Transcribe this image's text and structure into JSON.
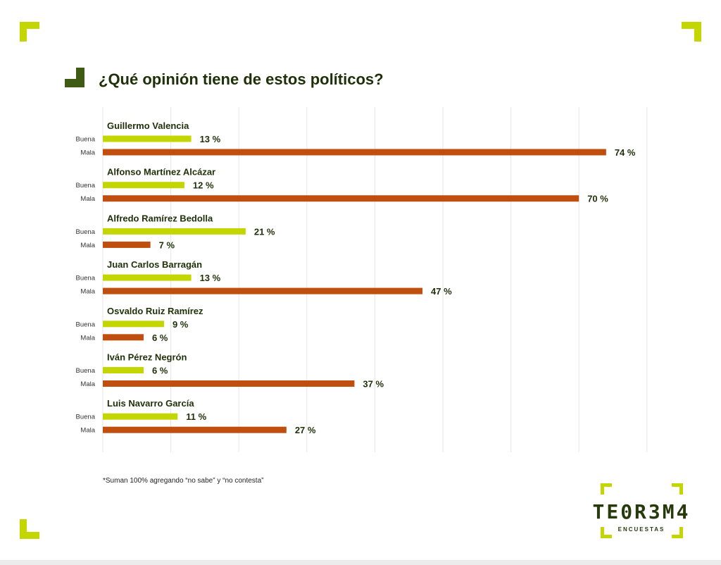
{
  "title": "¿Qué opinión tiene de estos políticos?",
  "footnote": "*Suman 100% agregando “no sabe” y “no contesta”",
  "brand": {
    "name": "TE0R3M4",
    "tagline": "ENCUESTAS"
  },
  "colors": {
    "accent": "#c4d600",
    "dark": "#3f5a12",
    "buena": "#c4d600",
    "mala": "#bf4e0f",
    "grid": "#e6e6e6",
    "label": "#1e3008"
  },
  "chart_data": {
    "type": "bar",
    "orientation": "horizontal",
    "title": "¿Qué opinión tiene de estos políticos?",
    "xlim": [
      0,
      80
    ],
    "grid": true,
    "value_suffix": " %",
    "series_labels": [
      "Buena",
      "Mala"
    ],
    "categories": [
      "Guillermo Valencia",
      "Alfonso Martínez Alcázar",
      "Alfredo Ramírez Bedolla",
      "Juan Carlos Barragán",
      "Osvaldo Ruiz Ramírez",
      "Iván Pérez Negrón",
      "Luis Navarro García"
    ],
    "series": [
      {
        "name": "Buena",
        "values": [
          13,
          12,
          21,
          13,
          9,
          6,
          11
        ]
      },
      {
        "name": "Mala",
        "values": [
          74,
          70,
          7,
          47,
          6,
          37,
          27
        ]
      }
    ]
  }
}
